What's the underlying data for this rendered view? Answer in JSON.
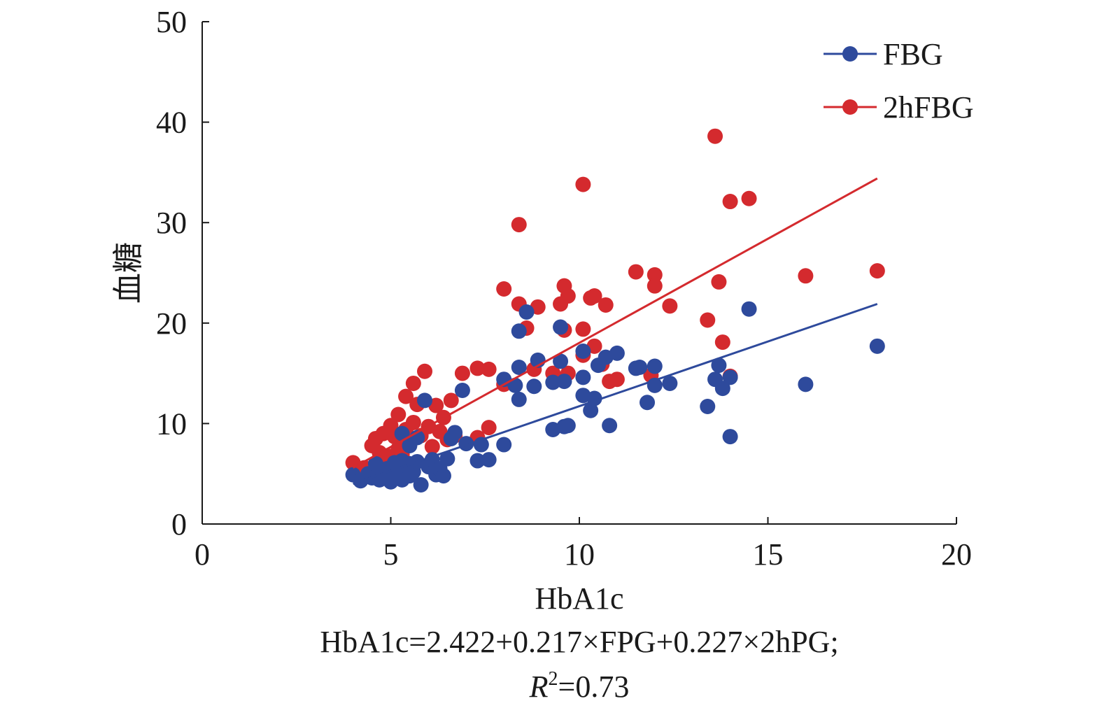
{
  "chart_data": {
    "type": "scatter",
    "title": "",
    "xlabel": "HbA1c",
    "ylabel": "血糖",
    "xlim": [
      0,
      20
    ],
    "ylim": [
      0,
      50
    ],
    "xticks": [
      "0",
      "5",
      "10",
      "15",
      "20"
    ],
    "yticks": [
      "0",
      "10",
      "20",
      "30",
      "40",
      "50"
    ],
    "grid": false,
    "legend_position": "top-right",
    "formula_line1": "HbA1c=2.422+0.217×FPG+0.227×2hPG;",
    "formula_line2_italic": "R",
    "formula_line2_sup": "2",
    "formula_line2_rest": "=0.73",
    "series": [
      {
        "name": "FBG",
        "color": "#2e4a9c",
        "trendline": {
          "x": [
            4.0,
            17.9
          ],
          "y": [
            4.0,
            21.9
          ]
        },
        "points": [
          [
            4.0,
            4.9
          ],
          [
            4.2,
            4.3
          ],
          [
            4.4,
            5.0
          ],
          [
            4.5,
            4.6
          ],
          [
            4.6,
            5.3
          ],
          [
            4.6,
            6.0
          ],
          [
            4.7,
            4.4
          ],
          [
            4.8,
            4.8
          ],
          [
            4.9,
            5.5
          ],
          [
            5.0,
            5.1
          ],
          [
            5.0,
            4.2
          ],
          [
            5.1,
            6.1
          ],
          [
            5.1,
            5.0
          ],
          [
            5.2,
            4.6
          ],
          [
            5.2,
            5.5
          ],
          [
            5.3,
            4.4
          ],
          [
            5.3,
            6.3
          ],
          [
            5.4,
            5.0
          ],
          [
            5.4,
            5.8
          ],
          [
            5.5,
            4.8
          ],
          [
            5.5,
            6.0
          ],
          [
            5.6,
            5.2
          ],
          [
            5.7,
            6.2
          ],
          [
            5.3,
            9.0
          ],
          [
            5.5,
            7.8
          ],
          [
            5.7,
            8.6
          ],
          [
            5.8,
            3.9
          ],
          [
            5.9,
            12.3
          ],
          [
            6.0,
            5.7
          ],
          [
            6.1,
            6.4
          ],
          [
            6.2,
            4.9
          ],
          [
            6.3,
            5.5
          ],
          [
            6.4,
            4.8
          ],
          [
            6.5,
            6.5
          ],
          [
            6.6,
            8.5
          ],
          [
            6.7,
            9.1
          ],
          [
            6.9,
            13.3
          ],
          [
            7.0,
            8.0
          ],
          [
            7.3,
            6.3
          ],
          [
            7.4,
            7.9
          ],
          [
            7.6,
            6.4
          ],
          [
            8.0,
            7.9
          ],
          [
            8.0,
            14.4
          ],
          [
            8.3,
            13.8
          ],
          [
            8.4,
            19.2
          ],
          [
            8.4,
            15.6
          ],
          [
            8.4,
            12.4
          ],
          [
            8.6,
            21.1
          ],
          [
            8.8,
            13.7
          ],
          [
            8.9,
            16.3
          ],
          [
            9.3,
            14.1
          ],
          [
            9.3,
            9.4
          ],
          [
            9.5,
            16.2
          ],
          [
            9.5,
            19.6
          ],
          [
            9.6,
            14.2
          ],
          [
            9.6,
            9.7
          ],
          [
            9.7,
            9.8
          ],
          [
            10.1,
            17.2
          ],
          [
            10.1,
            14.6
          ],
          [
            10.1,
            12.8
          ],
          [
            10.3,
            11.3
          ],
          [
            10.4,
            12.5
          ],
          [
            10.5,
            15.8
          ],
          [
            10.7,
            16.6
          ],
          [
            10.8,
            9.8
          ],
          [
            11.0,
            17.0
          ],
          [
            11.5,
            15.5
          ],
          [
            11.6,
            15.6
          ],
          [
            11.8,
            12.1
          ],
          [
            12.0,
            15.7
          ],
          [
            12.0,
            13.8
          ],
          [
            12.4,
            14.0
          ],
          [
            13.4,
            11.7
          ],
          [
            13.6,
            14.4
          ],
          [
            13.7,
            15.8
          ],
          [
            13.8,
            13.5
          ],
          [
            14.0,
            14.6
          ],
          [
            14.0,
            8.7
          ],
          [
            14.5,
            21.4
          ],
          [
            16.0,
            13.9
          ],
          [
            17.9,
            17.7
          ]
        ]
      },
      {
        "name": "2hFBG",
        "color": "#d42a2e",
        "trendline": {
          "x": [
            4.0,
            17.9
          ],
          "y": [
            5.6,
            34.4
          ]
        },
        "points": [
          [
            4.0,
            6.1
          ],
          [
            4.3,
            5.6
          ],
          [
            4.5,
            7.8
          ],
          [
            4.6,
            8.5
          ],
          [
            4.7,
            7.1
          ],
          [
            4.8,
            9.0
          ],
          [
            4.9,
            6.8
          ],
          [
            5.0,
            9.8
          ],
          [
            5.1,
            8.7
          ],
          [
            5.2,
            7.5
          ],
          [
            5.2,
            10.9
          ],
          [
            5.3,
            6.9
          ],
          [
            5.4,
            9.4
          ],
          [
            5.4,
            12.7
          ],
          [
            5.5,
            8.3
          ],
          [
            5.6,
            10.1
          ],
          [
            5.6,
            14.0
          ],
          [
            5.7,
            11.9
          ],
          [
            5.8,
            8.8
          ],
          [
            5.9,
            15.2
          ],
          [
            6.0,
            9.7
          ],
          [
            6.1,
            7.7
          ],
          [
            6.2,
            11.8
          ],
          [
            6.3,
            9.2
          ],
          [
            6.4,
            10.6
          ],
          [
            6.5,
            8.4
          ],
          [
            6.6,
            12.3
          ],
          [
            6.7,
            8.8
          ],
          [
            6.9,
            15.0
          ],
          [
            7.3,
            15.5
          ],
          [
            7.3,
            8.6
          ],
          [
            7.6,
            15.4
          ],
          [
            7.6,
            9.6
          ],
          [
            8.0,
            23.4
          ],
          [
            8.0,
            13.9
          ],
          [
            8.4,
            29.8
          ],
          [
            8.4,
            21.9
          ],
          [
            8.6,
            19.5
          ],
          [
            8.8,
            15.4
          ],
          [
            8.9,
            21.6
          ],
          [
            9.3,
            15.0
          ],
          [
            9.5,
            21.9
          ],
          [
            9.6,
            23.7
          ],
          [
            9.6,
            19.3
          ],
          [
            9.7,
            22.7
          ],
          [
            9.7,
            15.0
          ],
          [
            10.1,
            33.8
          ],
          [
            10.1,
            19.4
          ],
          [
            10.1,
            16.8
          ],
          [
            10.3,
            22.5
          ],
          [
            10.4,
            22.7
          ],
          [
            10.4,
            17.7
          ],
          [
            10.6,
            15.9
          ],
          [
            10.7,
            21.8
          ],
          [
            10.8,
            14.2
          ],
          [
            11.0,
            14.4
          ],
          [
            11.5,
            25.1
          ],
          [
            11.9,
            14.8
          ],
          [
            12.0,
            24.8
          ],
          [
            12.0,
            23.7
          ],
          [
            12.4,
            21.7
          ],
          [
            13.4,
            20.3
          ],
          [
            13.6,
            38.6
          ],
          [
            13.7,
            24.1
          ],
          [
            13.8,
            18.1
          ],
          [
            14.0,
            32.1
          ],
          [
            14.0,
            14.7
          ],
          [
            14.5,
            32.4
          ],
          [
            16.0,
            24.7
          ],
          [
            17.9,
            25.2
          ]
        ]
      }
    ]
  }
}
